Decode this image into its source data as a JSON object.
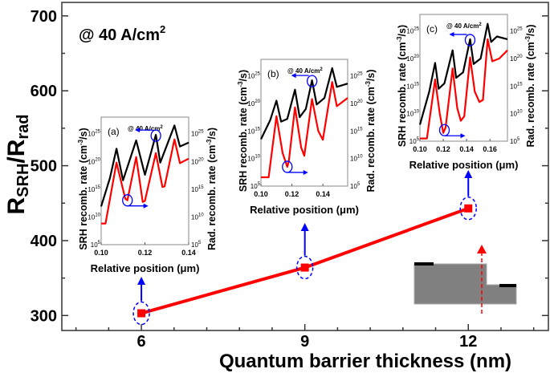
{
  "chart_data": [
    {
      "type": "line",
      "annotation": "@ 40 A/cm",
      "annotation_sup": "2",
      "xlabel": "Quantum barrier thickness (nm)",
      "ylabel_parts": [
        "R",
        "SRH",
        "/R",
        "rad"
      ],
      "x": [
        6,
        9,
        12
      ],
      "values": [
        303,
        364,
        443
      ],
      "xticks": [
        "6",
        "9",
        "12"
      ],
      "yticks": [
        "300",
        "400",
        "500",
        "600",
        "700"
      ],
      "xlim": [
        4.54,
        13.47
      ],
      "ylim": [
        280,
        718
      ],
      "grid": false,
      "colors": {
        "line": "#ff0000",
        "marker": "#ff0000",
        "highlight": "#0000ff"
      }
    },
    {
      "type": "line",
      "panel": "(a)",
      "note": "@ 40 A/cm",
      "note_sup": "2",
      "xlabel": "Relative position (μm)",
      "ylabel_left": "SRH recomb. rate (cm",
      "ylabel_right": "Rad. recomb. rate (cm",
      "ylabel_sup": "-3",
      "ylabel_tail": "/s)",
      "xticks": [
        "0.10",
        "0.12",
        "0.14"
      ],
      "xtick_values": [
        0.1,
        0.12,
        0.14
      ],
      "ytick_exponents": [
        "5",
        "10",
        "15",
        "20",
        "25"
      ],
      "xlim": [
        0.1,
        0.14
      ],
      "ylim_log10": [
        5,
        28
      ],
      "series": [
        {
          "color": "#000000",
          "x": [
            0.1,
            0.104,
            0.107,
            0.11,
            0.116,
            0.12,
            0.125,
            0.127,
            0.1335,
            0.136,
            0.14
          ],
          "log10": [
            11.9,
            17,
            22.3,
            16.6,
            23.8,
            17.6,
            24.8,
            19.8,
            26.5,
            22.7,
            23.4
          ]
        },
        {
          "color": "#ff0000",
          "x": [
            0.1,
            0.102,
            0.107,
            0.111,
            0.112,
            0.116,
            0.119,
            0.12,
            0.125,
            0.128,
            0.129,
            0.1335,
            0.136,
            0.14
          ],
          "log10": [
            8.8,
            8.8,
            19.8,
            13.3,
            13.0,
            20.8,
            12.7,
            12.9,
            21.5,
            15.4,
            15.5,
            24,
            19.7,
            20.5
          ]
        }
      ]
    },
    {
      "type": "line",
      "panel": "(b)",
      "note": "@ 40 A/cm",
      "note_sup": "2",
      "xlabel": "Relative position (μm)",
      "ylabel_left": "SRH recomb. rate (cm",
      "ylabel_right": "Rad. recomb. rate (cm",
      "ylabel_sup": "-3",
      "ylabel_tail": "/s)",
      "xticks": [
        "0.10",
        "0.12",
        "0.14"
      ],
      "xtick_values": [
        0.1,
        0.12,
        0.14
      ],
      "ytick_exponents": [
        "5",
        "10",
        "15",
        "20",
        "25"
      ],
      "xlim": [
        0.1,
        0.156
      ],
      "ylim_log10": [
        5,
        28
      ],
      "series": [
        {
          "color": "#000000",
          "x": [
            0.1,
            0.106,
            0.11,
            0.113,
            0.117,
            0.122,
            0.125,
            0.129,
            0.133,
            0.136,
            0.141,
            0.146,
            0.149,
            0.156
          ],
          "log10": [
            13.5,
            17,
            20.5,
            16.7,
            17.2,
            22.5,
            17.5,
            19,
            24.2,
            19.8,
            21,
            26.4,
            23,
            23.6
          ]
        },
        {
          "color": "#ff0000",
          "x": [
            0.1,
            0.105,
            0.11,
            0.114,
            0.117,
            0.118,
            0.122,
            0.126,
            0.128,
            0.133,
            0.137,
            0.14,
            0.146,
            0.149,
            0.156
          ],
          "log10": [
            6.6,
            6.6,
            17.7,
            11,
            8.5,
            9.5,
            19.3,
            12,
            10.5,
            20.8,
            15,
            13.4,
            23.9,
            19.5,
            21
          ]
        }
      ]
    },
    {
      "type": "line",
      "panel": "(c)",
      "note": "@ 40 A/cm",
      "note_sup": "2",
      "xlabel": "Relative position (μm)",
      "ylabel_left": "SRH recomb. rate (cm",
      "ylabel_right": "Rad. recomb. rate (cm",
      "ylabel_sup": "-3",
      "ylabel_tail": "/s)",
      "xticks": [
        "0.10",
        "0.12",
        "0.14",
        "0.16"
      ],
      "xtick_values": [
        0.1,
        0.12,
        0.14,
        0.16
      ],
      "ytick_exponents": [
        "5",
        "10",
        "15",
        "20",
        "25"
      ],
      "xlim": [
        0.1,
        0.175
      ],
      "ylim_log10": [
        5,
        28
      ],
      "series": [
        {
          "color": "#000000",
          "x": [
            0.1,
            0.108,
            0.113,
            0.116,
            0.121,
            0.128,
            0.131,
            0.137,
            0.143,
            0.146,
            0.152,
            0.158,
            0.161,
            0.166,
            0.175
          ],
          "log10": [
            8,
            14,
            19.2,
            14.5,
            15.5,
            21.5,
            16.5,
            17.5,
            23.5,
            19,
            20,
            26.3,
            23,
            24,
            23.5
          ]
        },
        {
          "color": "#ff0000",
          "x": [
            0.1,
            0.106,
            0.113,
            0.117,
            0.12,
            0.122,
            0.128,
            0.132,
            0.135,
            0.138,
            0.143,
            0.147,
            0.151,
            0.154,
            0.158,
            0.162,
            0.168,
            0.175
          ],
          "log10": [
            5.5,
            5.5,
            16.2,
            10,
            6.5,
            7.5,
            18.2,
            11,
            8.7,
            9.5,
            20.2,
            14,
            12.1,
            12.5,
            23.5,
            19.5,
            20,
            21.5
          ]
        }
      ]
    }
  ]
}
